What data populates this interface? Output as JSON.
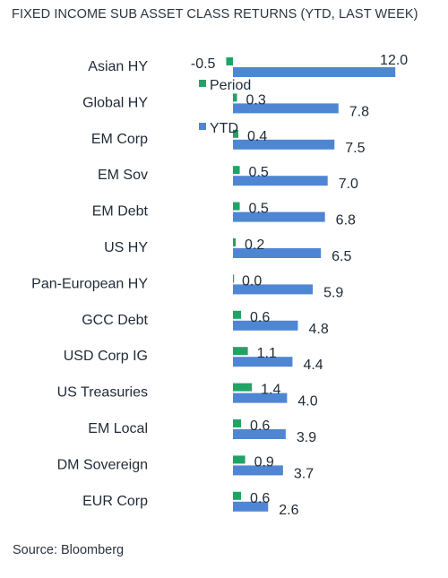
{
  "title": "FIXED INCOME SUB ASSET CLASS RETURNS (YTD, LAST WEEK)",
  "source": "Source: Bloomberg",
  "chart_data": {
    "type": "bar",
    "orientation": "horizontal",
    "categories": [
      "Asian HY",
      "Global HY",
      "EM Corp",
      "EM Sov",
      "EM Debt",
      "US HY",
      "Pan-European HY",
      "GCC Debt",
      "USD Corp IG",
      "US Treasuries",
      "EM Local",
      "DM Sovereign",
      "EUR Corp"
    ],
    "series": [
      {
        "name": "Period",
        "color": "#21a366",
        "values": [
          -0.5,
          0.3,
          0.4,
          0.5,
          0.5,
          0.2,
          0.0,
          0.6,
          1.1,
          1.4,
          0.6,
          0.9,
          0.6
        ],
        "labels": [
          "-0.5",
          "0.3",
          "0.4",
          "0.5",
          "0.5",
          "0.2",
          "0.0",
          "0.6",
          "1.1",
          "1.4",
          "0.6",
          "0.9",
          "0.6"
        ]
      },
      {
        "name": "YTD",
        "color": "#4f86d3",
        "values": [
          12.0,
          7.8,
          7.5,
          7.0,
          6.8,
          6.5,
          5.9,
          4.8,
          4.4,
          4.0,
          3.9,
          3.7,
          2.6
        ],
        "labels": [
          "12.0",
          "7.8",
          "7.5",
          "7.0",
          "6.8",
          "6.5",
          "5.9",
          "4.8",
          "4.4",
          "4.0",
          "3.9",
          "3.7",
          "2.6"
        ]
      }
    ],
    "legend": {
      "placement": "top-left, inside plot",
      "entries": [
        "Period",
        "YTD"
      ]
    },
    "grid": false
  }
}
